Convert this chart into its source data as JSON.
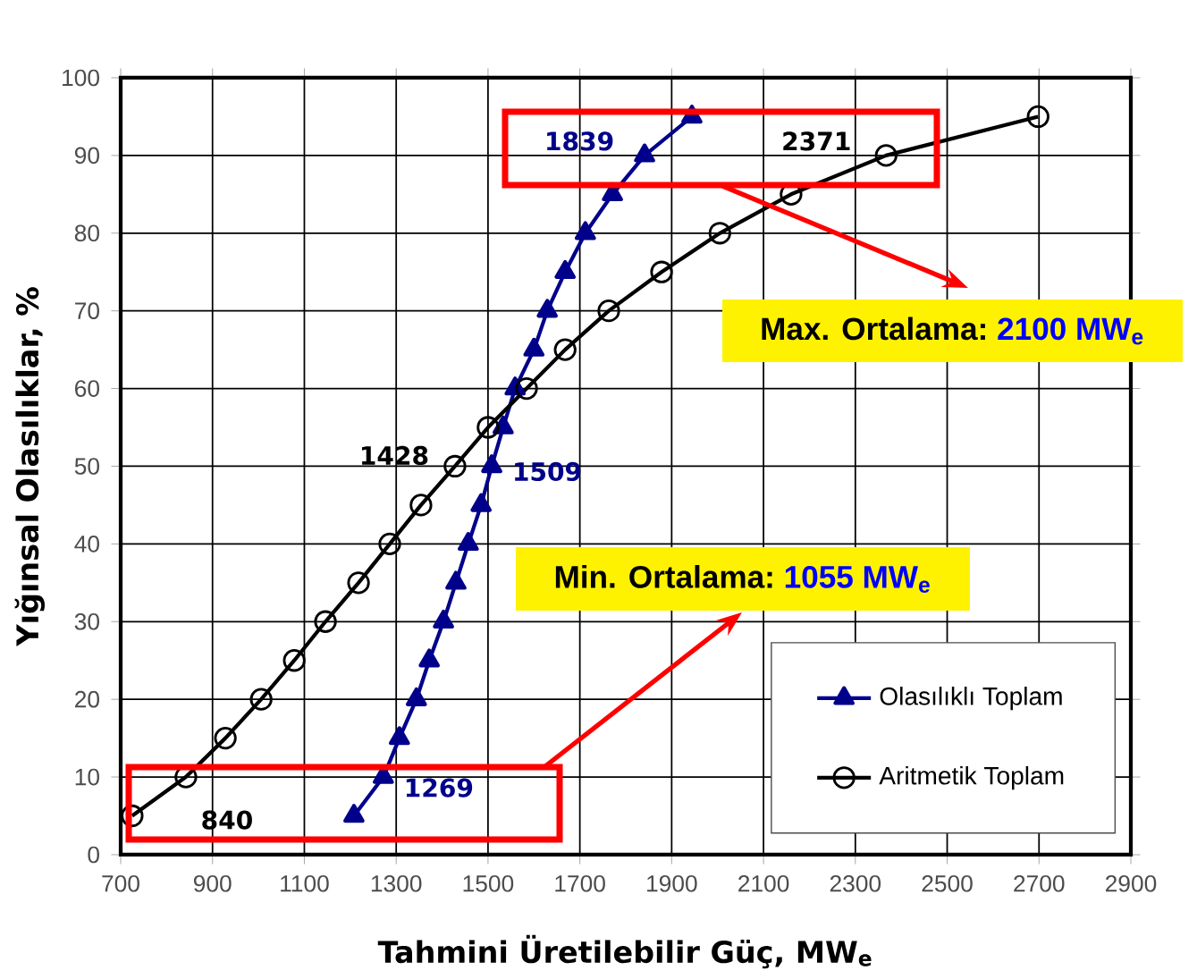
{
  "chart_data": {
    "type": "line",
    "xlabel": "Tahmini Üretilebilir Güç, MW$_{e}$",
    "ylabel": "Yığınsal Olasılıklar, %",
    "series": [
      {
        "name": "Olasılıklı Toplam",
        "color": "#00008b",
        "marker": "triangle",
        "x": [
          1208,
          1272,
          1307,
          1344,
          1372,
          1403,
          1430,
          1457,
          1485,
          1508,
          1533,
          1559,
          1600,
          1629,
          1668,
          1712,
          1771,
          1841,
          1944
        ],
        "values": [
          5,
          10,
          15,
          20,
          25,
          30,
          35,
          40,
          45,
          50,
          55,
          60,
          65,
          70,
          75,
          80,
          85,
          90,
          95
        ]
      },
      {
        "name": "Aritmetik Toplam",
        "color": "#000000",
        "marker": "circle",
        "x": [
          725,
          842,
          928,
          1006,
          1078,
          1146,
          1218,
          1286,
          1354,
          1428,
          1500,
          1584,
          1668,
          1763,
          1878,
          2005,
          2160,
          2367,
          2698
        ],
        "values": [
          5,
          10,
          15,
          20,
          25,
          30,
          35,
          40,
          45,
          50,
          55,
          60,
          65,
          70,
          75,
          80,
          85,
          90,
          95
        ]
      }
    ],
    "xlim": [
      700,
      2900
    ],
    "xticks": [
      700,
      900,
      1100,
      1300,
      1500,
      1700,
      1900,
      2100,
      2300,
      2500,
      2700,
      2900
    ],
    "ylim": [
      0,
      100
    ],
    "yticks": [
      0,
      10,
      20,
      30,
      40,
      50,
      60,
      70,
      80,
      90,
      100
    ],
    "grid": true,
    "legend": "bottom right",
    "annotations": [
      {
        "text": "1839",
        "x": 1841,
        "y": 90
      },
      {
        "text": "2371",
        "x": 2367,
        "y": 90
      },
      {
        "text": "1428",
        "x": 1428,
        "y": 50
      },
      {
        "text": "1509",
        "x": 1508,
        "y": 50
      },
      {
        "text": "1269",
        "x": 1272,
        "y": 10
      },
      {
        "text": "840",
        "x": 842,
        "y": 10
      },
      "Max. Ortalama:",
      "2100 MW$_{e}$",
      "Min. Ortalama:",
      "1055 MW$_{e}$"
    ]
  }
}
